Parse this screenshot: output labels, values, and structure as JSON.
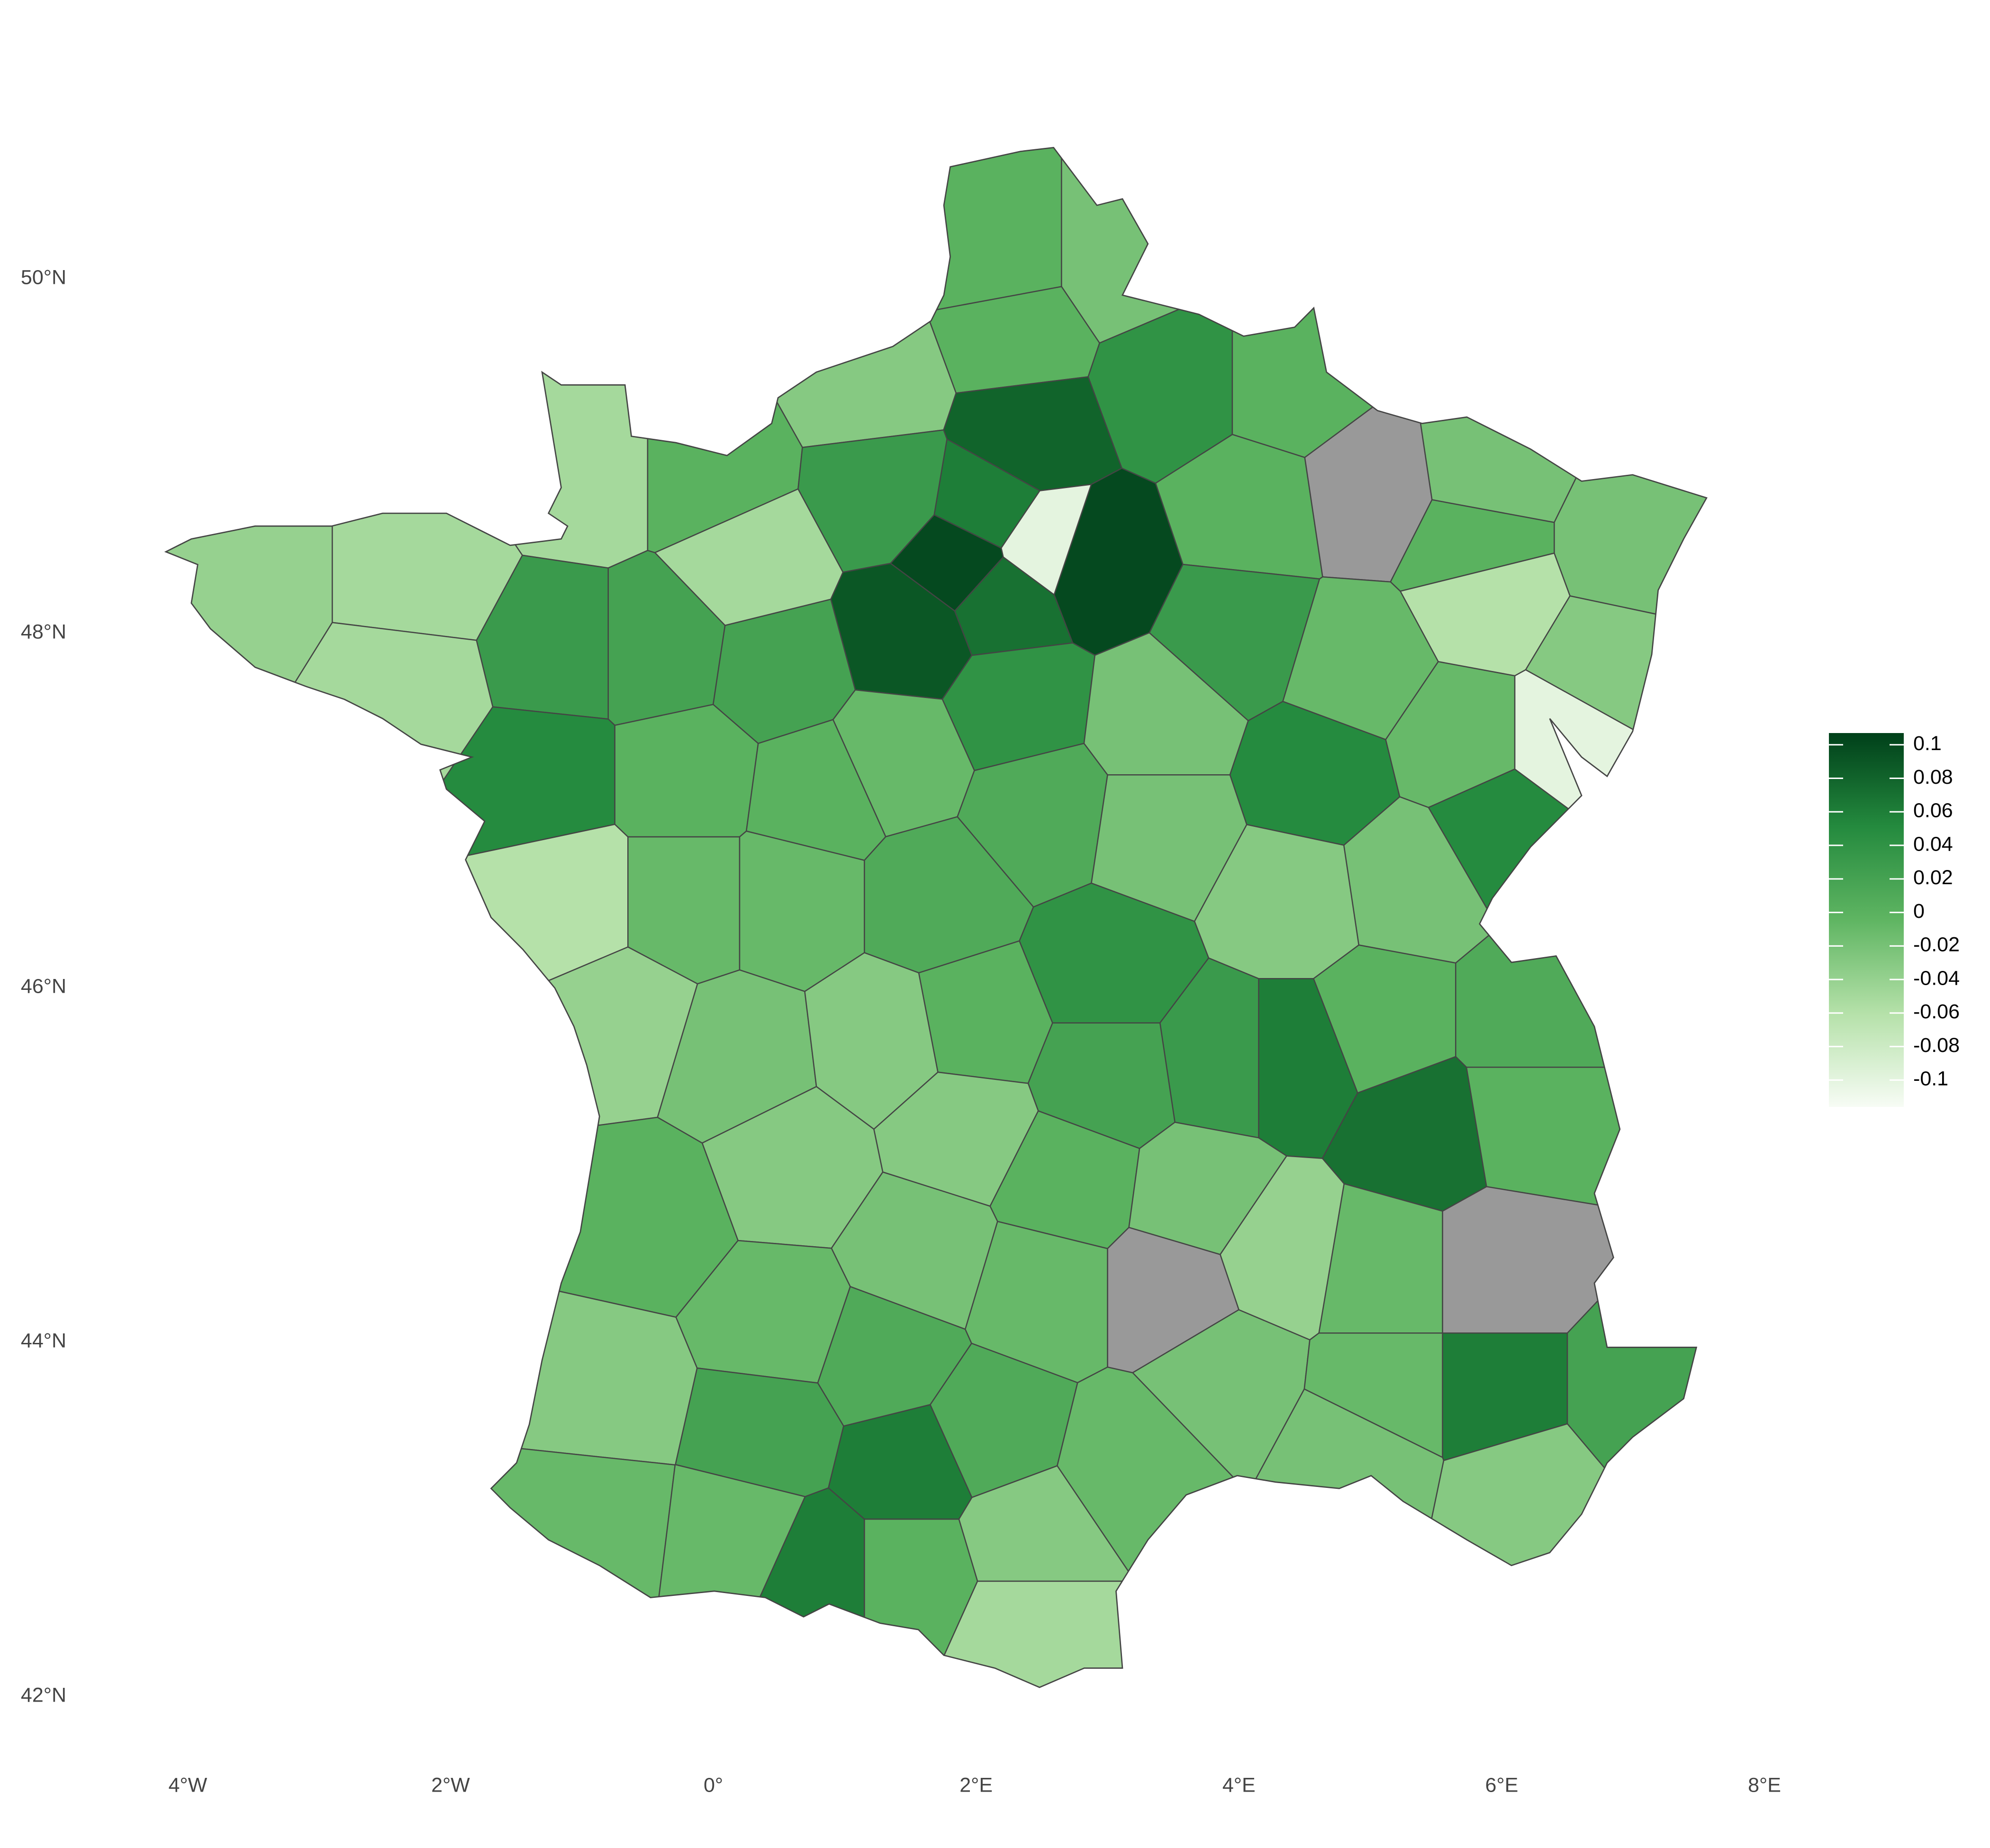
{
  "chart_data": {
    "type": "map",
    "x": [
      2.2,
      3.1,
      2.3,
      3.5,
      4.4,
      1.2,
      2.4,
      4.1,
      5.0,
      5.9,
      7.0,
      5.8,
      5.9,
      6.8,
      -1.0,
      0.0,
      0.3,
      1.3,
      2.1,
      2.5,
      2.9,
      1.9,
      1.5,
      2.2,
      2.3,
      4.0,
      4.9,
      -3.6,
      -2.2,
      -2.3,
      -1.2,
      -0.4,
      0.5,
      1.4,
      -1.3,
      -0.2,
      0.8,
      2.5,
      3.4,
      4.6,
      5.7,
      6.0,
      -1.1,
      -0.2,
      0.6,
      1.7,
      3.4,
      4.4,
      5.3,
      -0.7,
      0.2,
      1.3,
      2.0,
      3.0,
      5.1,
      6.2,
      4.4,
      3.9,
      3.0,
      5.4,
      6.2,
      0.6,
      1.9,
      2.7,
      3.7,
      4.3,
      5.1,
      6.0,
      -0.5,
      1.6,
      3.5,
      -0.8,
      0.5,
      1.3,
      2.5,
      3.9,
      5.1,
      6.0,
      7.0,
      0.4,
      1.5,
      2.1,
      3.2,
      4.9,
      6.2,
      -0.9,
      0.2,
      0.8,
      1.5,
      2.4,
      2.4,
      6.5
    ],
    "y": [
      50.1,
      50.1,
      49.7,
      49.4,
      49.4,
      49.4,
      49.1,
      48.7,
      48.8,
      48.9,
      48.5,
      48.5,
      48.2,
      47.8,
      48.9,
      48.9,
      48.4,
      48.8,
      48.7,
      48.5,
      48.4,
      48.4,
      48.0,
      48.2,
      47.6,
      48.0,
      47.8,
      48.3,
      48.3,
      47.7,
      47.9,
      47.9,
      47.8,
      47.3,
      47.2,
      47.2,
      47.1,
      47.0,
      47.5,
      47.2,
      47.4,
      46.9,
      46.5,
      46.5,
      46.5,
      46.5,
      46.9,
      46.5,
      46.6,
      45.8,
      45.6,
      45.7,
      45.8,
      46.1,
      45.8,
      45.8,
      45.6,
      45.6,
      45.5,
      45.2,
      45.3,
      45.0,
      45.2,
      44.9,
      44.8,
      44.5,
      44.4,
      44.4,
      44.7,
      44.5,
      44.3,
      43.7,
      44.1,
      43.9,
      44.3,
      43.8,
      43.7,
      43.7,
      43.7,
      43.5,
      43.3,
      43.5,
      43.3,
      43.4,
      43.2,
      43.0,
      42.9,
      42.7,
      42.7,
      42.4,
      42.9,
      47.4
    ],
    "values": [
      0.0,
      -0.02,
      0.0,
      0.04,
      0.0,
      -0.03,
      0.08,
      0.0,
      null,
      -0.02,
      -0.02,
      0.0,
      -0.06,
      -0.03,
      -0.05,
      0.0,
      -0.05,
      0.03,
      0.06,
      -0.1,
      0.1,
      0.1,
      0.09,
      0.07,
      0.04,
      0.03,
      -0.01,
      -0.04,
      -0.05,
      -0.05,
      0.03,
      0.02,
      0.02,
      -0.01,
      0.05,
      0.0,
      0.0,
      0.01,
      -0.02,
      0.05,
      -0.01,
      0.05,
      -0.06,
      -0.01,
      -0.01,
      0.01,
      -0.02,
      -0.03,
      -0.02,
      -0.04,
      -0.02,
      -0.03,
      0.0,
      0.04,
      0.0,
      0.01,
      0.06,
      0.03,
      0.02,
      0.07,
      0.0,
      -0.03,
      -0.03,
      0.0,
      -0.02,
      -0.04,
      -0.01,
      null,
      0.0,
      -0.02,
      null,
      -0.03,
      -0.01,
      0.01,
      -0.01,
      -0.02,
      -0.01,
      0.06,
      0.02,
      0.02,
      0.06,
      0.01,
      -0.01,
      -0.02,
      -0.03,
      -0.01,
      -0.01,
      0.06,
      0.0,
      -0.05,
      -0.03,
      -0.1
    ],
    "xlim": [
      -5,
      8
    ],
    "ylim": [
      42,
      51
    ],
    "xticks": [
      {
        "value": -4,
        "label": "4°W"
      },
      {
        "value": -2,
        "label": "2°W"
      },
      {
        "value": 0,
        "label": "0°"
      },
      {
        "value": 2,
        "label": "2°E"
      },
      {
        "value": 4,
        "label": "4°E"
      },
      {
        "value": 6,
        "label": "6°E"
      },
      {
        "value": 8,
        "label": "8°E"
      }
    ],
    "yticks": [
      {
        "value": 42,
        "label": "42°N"
      },
      {
        "value": 44,
        "label": "44°N"
      },
      {
        "value": 46,
        "label": "46°N"
      },
      {
        "value": 48,
        "label": "48°N"
      },
      {
        "value": 50,
        "label": "50°N"
      }
    ],
    "colorbar_lim": [
      -0.116,
      0.107
    ],
    "colorbar_ticks": [
      0.1,
      0.08,
      0.06,
      0.04,
      0.02,
      0,
      -0.02,
      -0.04,
      -0.06,
      -0.08,
      -0.1
    ],
    "colors": [
      "#f7fcf5",
      "#b5e1a9",
      "#5fb562",
      "#248a3e",
      "#00401a"
    ],
    "na_color": "#999999",
    "grid": false
  }
}
